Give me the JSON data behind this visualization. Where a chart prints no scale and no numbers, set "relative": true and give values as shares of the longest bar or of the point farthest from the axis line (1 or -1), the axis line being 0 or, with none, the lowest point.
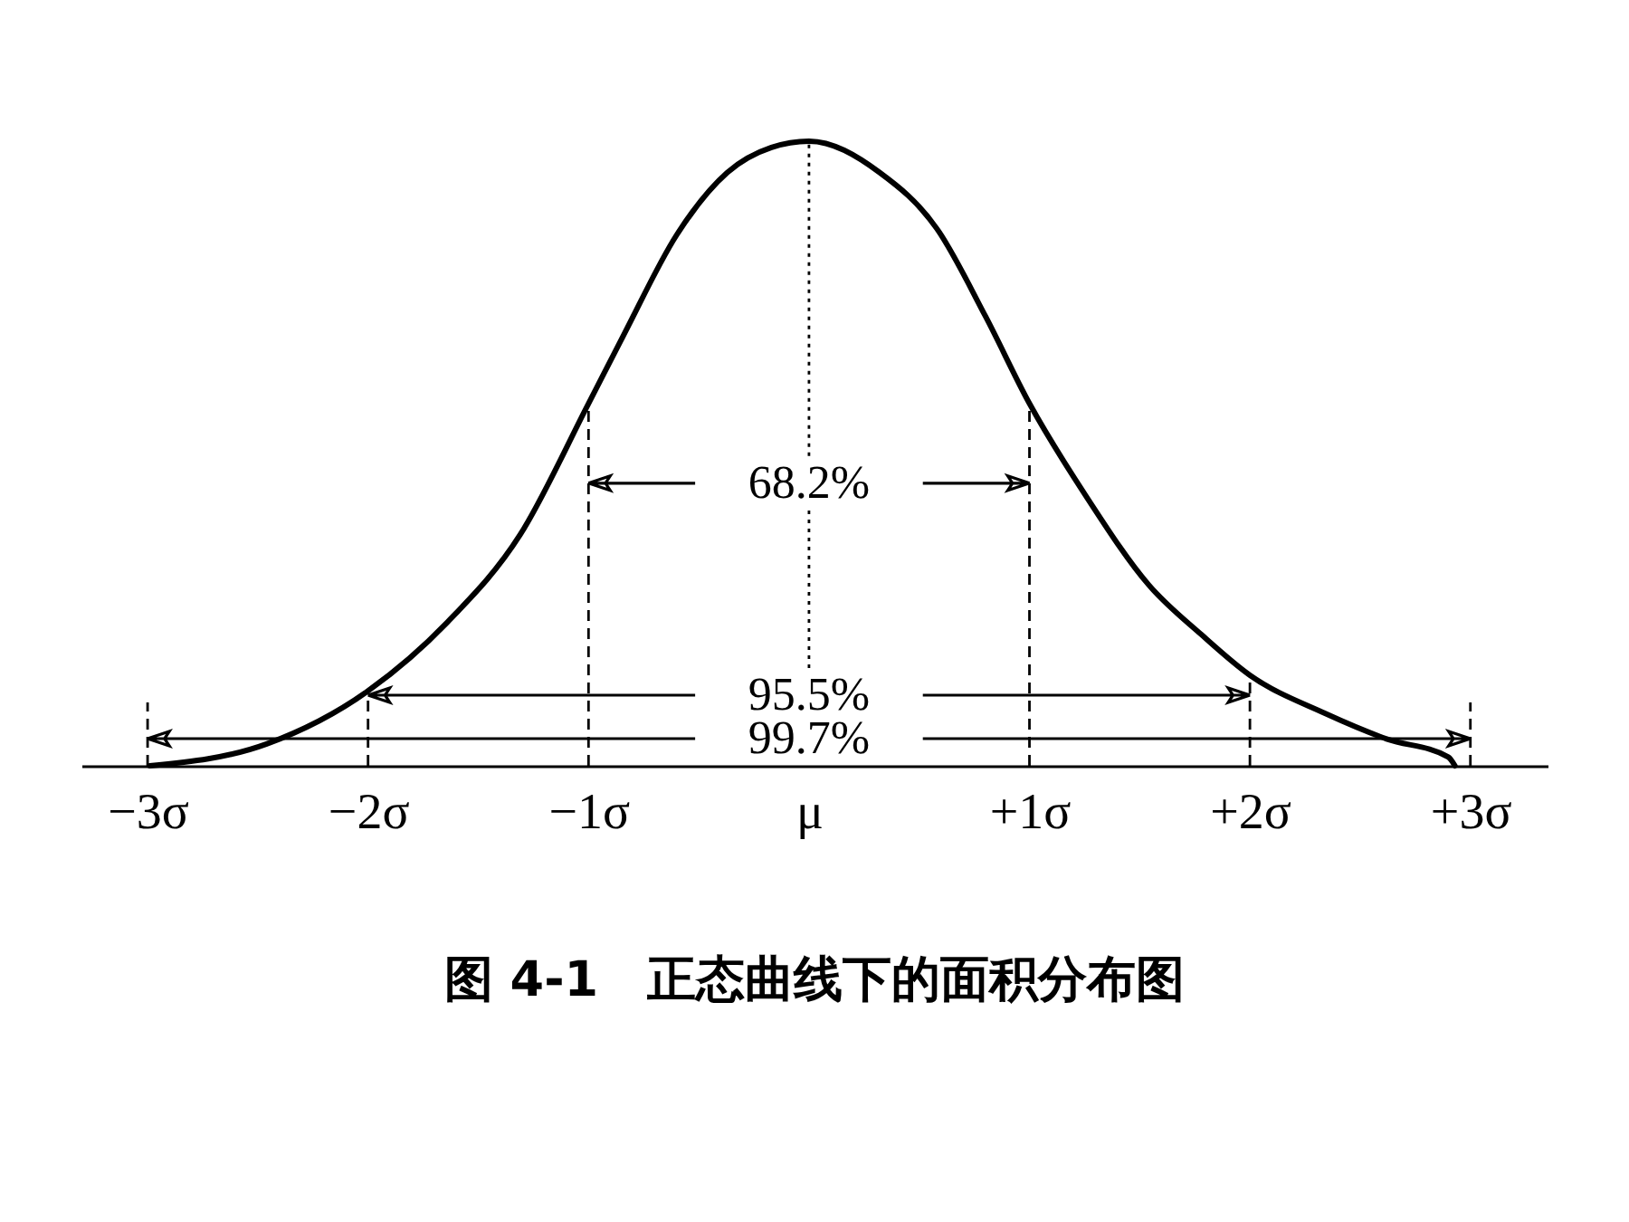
{
  "chart_data": {
    "type": "line",
    "title": "图 4-1　正态曲线下的面积分布图",
    "relative": true,
    "tick_labels": "x",
    "xlim": [
      -3.3,
      3.35
    ],
    "xticks": [
      {
        "value": -3,
        "label": "−3σ"
      },
      {
        "value": -2,
        "label": "−2σ"
      },
      {
        "value": -1,
        "label": "−1σ"
      },
      {
        "value": 0,
        "label": "μ"
      },
      {
        "value": 1,
        "label": "+1σ"
      },
      {
        "value": 2,
        "label": "+2σ"
      },
      {
        "value": 3,
        "label": "+3σ"
      }
    ],
    "series": [
      {
        "color": "#000000",
        "x": [
          -2.99,
          -2.46,
          -2.0,
          -1.64,
          -1.31,
          -1.0,
          -0.84,
          -0.6,
          -0.37,
          -0.17,
          0,
          0.32,
          0.58,
          0.8,
          1.0,
          1.26,
          1.54,
          1.78,
          2.0,
          2.34,
          2.62,
          2.9,
          2.93
        ],
        "values": [
          0,
          0.035,
          0.12,
          0.23,
          0.37,
          0.58,
          0.69,
          0.85,
          0.95,
          0.99,
          1,
          0.95,
          0.86,
          0.72,
          0.58,
          0.43,
          0.29,
          0.21,
          0.145,
          0.084,
          0.043,
          0.014,
          0
        ]
      }
    ],
    "ref_lines": [
      {
        "axis": "x",
        "value": -1,
        "line_style": "dashed"
      },
      {
        "axis": "x",
        "value": 1,
        "line_style": "dashed"
      },
      {
        "axis": "x",
        "value": -2,
        "line_style": "dashed"
      },
      {
        "axis": "x",
        "value": 2,
        "line_style": "dashed"
      },
      {
        "axis": "x",
        "value": -3,
        "line_style": "dashed"
      },
      {
        "axis": "x",
        "value": 3,
        "line_style": "dashed"
      },
      {
        "axis": "x",
        "value": 0,
        "line_style": "dotted"
      }
    ],
    "annotations": [
      "68.2%",
      "95.5%",
      "99.7%"
    ]
  }
}
